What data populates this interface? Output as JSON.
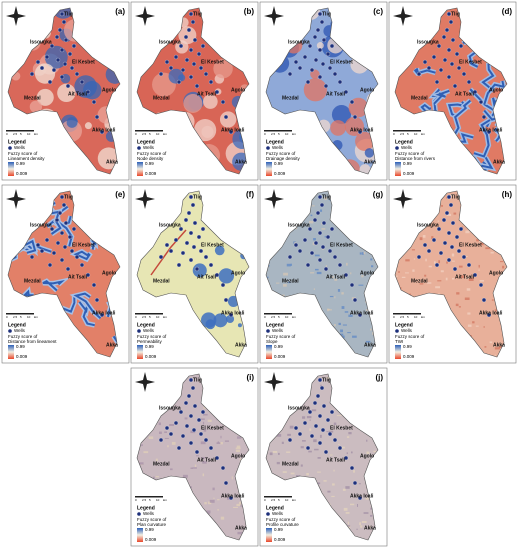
{
  "figure": {
    "legend_title": "Legend",
    "wells_label": "Wells",
    "score_prefix": "Fuzzy score of",
    "scale_high": "0.99",
    "scale_low": "0.009",
    "scalebar": [
      "0",
      "2.5",
      "5",
      "10",
      "km"
    ],
    "place_names": [
      "Issougka",
      "Tlig",
      "El Kesbet",
      "Mezdal",
      "Ait Tsali",
      "Agolo",
      "Akka Ioali",
      "Akka"
    ],
    "panels": [
      {
        "label": "(a)",
        "criterion": "Lineament density"
      },
      {
        "label": "(b)",
        "criterion": "Node density"
      },
      {
        "label": "(c)",
        "criterion": "Drainage density"
      },
      {
        "label": "(d)",
        "criterion": "Distance from rivers"
      },
      {
        "label": "(e)",
        "criterion": "Distance from lineament"
      },
      {
        "label": "(f)",
        "criterion": "Permeability"
      },
      {
        "label": "(g)",
        "criterion": "Slope"
      },
      {
        "label": "(h)",
        "criterion": "TWI"
      },
      {
        "label": "(i)",
        "criterion": "Plan curvature"
      },
      {
        "label": "(j)",
        "criterion": "Profile curvature"
      }
    ]
  }
}
